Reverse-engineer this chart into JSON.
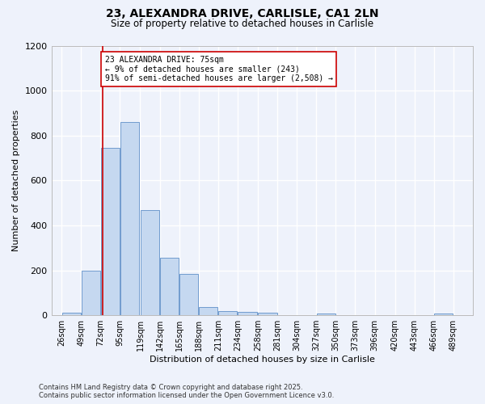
{
  "title1": "23, ALEXANDRA DRIVE, CARLISLE, CA1 2LN",
  "title2": "Size of property relative to detached houses in Carlisle",
  "xlabel": "Distribution of detached houses by size in Carlisle",
  "ylabel": "Number of detached properties",
  "bar_left_edges": [
    26,
    49,
    72,
    95,
    119,
    142,
    165,
    188,
    211,
    234,
    258,
    281,
    304,
    327,
    350,
    373,
    396,
    420,
    443,
    466
  ],
  "bar_heights": [
    10,
    200,
    745,
    860,
    470,
    255,
    183,
    35,
    20,
    15,
    10,
    0,
    0,
    8,
    0,
    0,
    0,
    0,
    0,
    8
  ],
  "bin_width": 23,
  "tick_labels": [
    "26sqm",
    "49sqm",
    "72sqm",
    "95sqm",
    "119sqm",
    "142sqm",
    "165sqm",
    "188sqm",
    "211sqm",
    "234sqm",
    "258sqm",
    "281sqm",
    "304sqm",
    "327sqm",
    "350sqm",
    "373sqm",
    "396sqm",
    "420sqm",
    "443sqm",
    "466sqm",
    "489sqm"
  ],
  "tick_positions": [
    26,
    49,
    72,
    95,
    119,
    142,
    165,
    188,
    211,
    234,
    258,
    281,
    304,
    327,
    350,
    373,
    396,
    420,
    443,
    466,
    489
  ],
  "bar_color": "#c5d8f0",
  "bar_edge_color": "#6090c8",
  "vline_x": 75,
  "vline_color": "#cc0000",
  "annotation_text": "23 ALEXANDRA DRIVE: 75sqm\n← 9% of detached houses are smaller (243)\n91% of semi-detached houses are larger (2,508) →",
  "annotation_box_color": "#ffffff",
  "annotation_box_edge": "#cc0000",
  "ylim": [
    0,
    1200
  ],
  "yticks": [
    0,
    200,
    400,
    600,
    800,
    1000,
    1200
  ],
  "bg_color": "#eef2fb",
  "grid_color": "#ffffff",
  "footer1": "Contains HM Land Registry data © Crown copyright and database right 2025.",
  "footer2": "Contains public sector information licensed under the Open Government Licence v3.0."
}
